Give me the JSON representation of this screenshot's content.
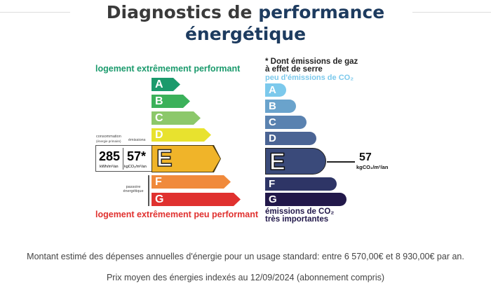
{
  "title": {
    "part1": "Diagnostics de",
    "part2": "performance",
    "part3": "énergétique"
  },
  "energy": {
    "top_label": "logement extrêmement performant",
    "bottom_label": "logement extrêmement peu performant",
    "consumption_label": "consommation",
    "consumption_sub": "(énergie primaire)",
    "emissions_label": "émissions",
    "consumption_value": "285",
    "consumption_unit": "kWh/m²/an",
    "emissions_value": "57*",
    "emissions_unit": "kgCO₂/m²/an",
    "passoire_label": "passoire énergétique",
    "current": "E",
    "classes": [
      {
        "letter": "A",
        "color": "#1a9a6c"
      },
      {
        "letter": "B",
        "color": "#3bb15a"
      },
      {
        "letter": "C",
        "color": "#8cc86a"
      },
      {
        "letter": "D",
        "color": "#e8e22e"
      },
      {
        "letter": "E",
        "color": "#f0b429"
      },
      {
        "letter": "F",
        "color": "#f08a3c"
      },
      {
        "letter": "G",
        "color": "#e0312f"
      }
    ]
  },
  "ges": {
    "note_line1": "* Dont émissions de gaz",
    "note_line2": "à effet de serre",
    "top_label": "peu d'émissions de CO₂",
    "bottom_line1": "émissions de CO₂",
    "bottom_line2": "très importantes",
    "value": "57",
    "unit": "kgCO₂/m²/an",
    "current": "E",
    "classes": [
      {
        "letter": "A",
        "color": "#7cc9ec"
      },
      {
        "letter": "B",
        "color": "#6aa3cc"
      },
      {
        "letter": "C",
        "color": "#5a82b0"
      },
      {
        "letter": "D",
        "color": "#4b6494"
      },
      {
        "letter": "E",
        "color": "#3a4a7a"
      },
      {
        "letter": "F",
        "color": "#2e3566"
      },
      {
        "letter": "G",
        "color": "#22184a"
      }
    ]
  },
  "footer": {
    "cost": "Montant estimé des dépenses annuelles d'énergie pour un usage standard: entre 6 570,00€ et 8 930,00€ par an.",
    "prices": "Prix moyen des énergies indexés au 12/09/2024 (abonnement compris)"
  }
}
